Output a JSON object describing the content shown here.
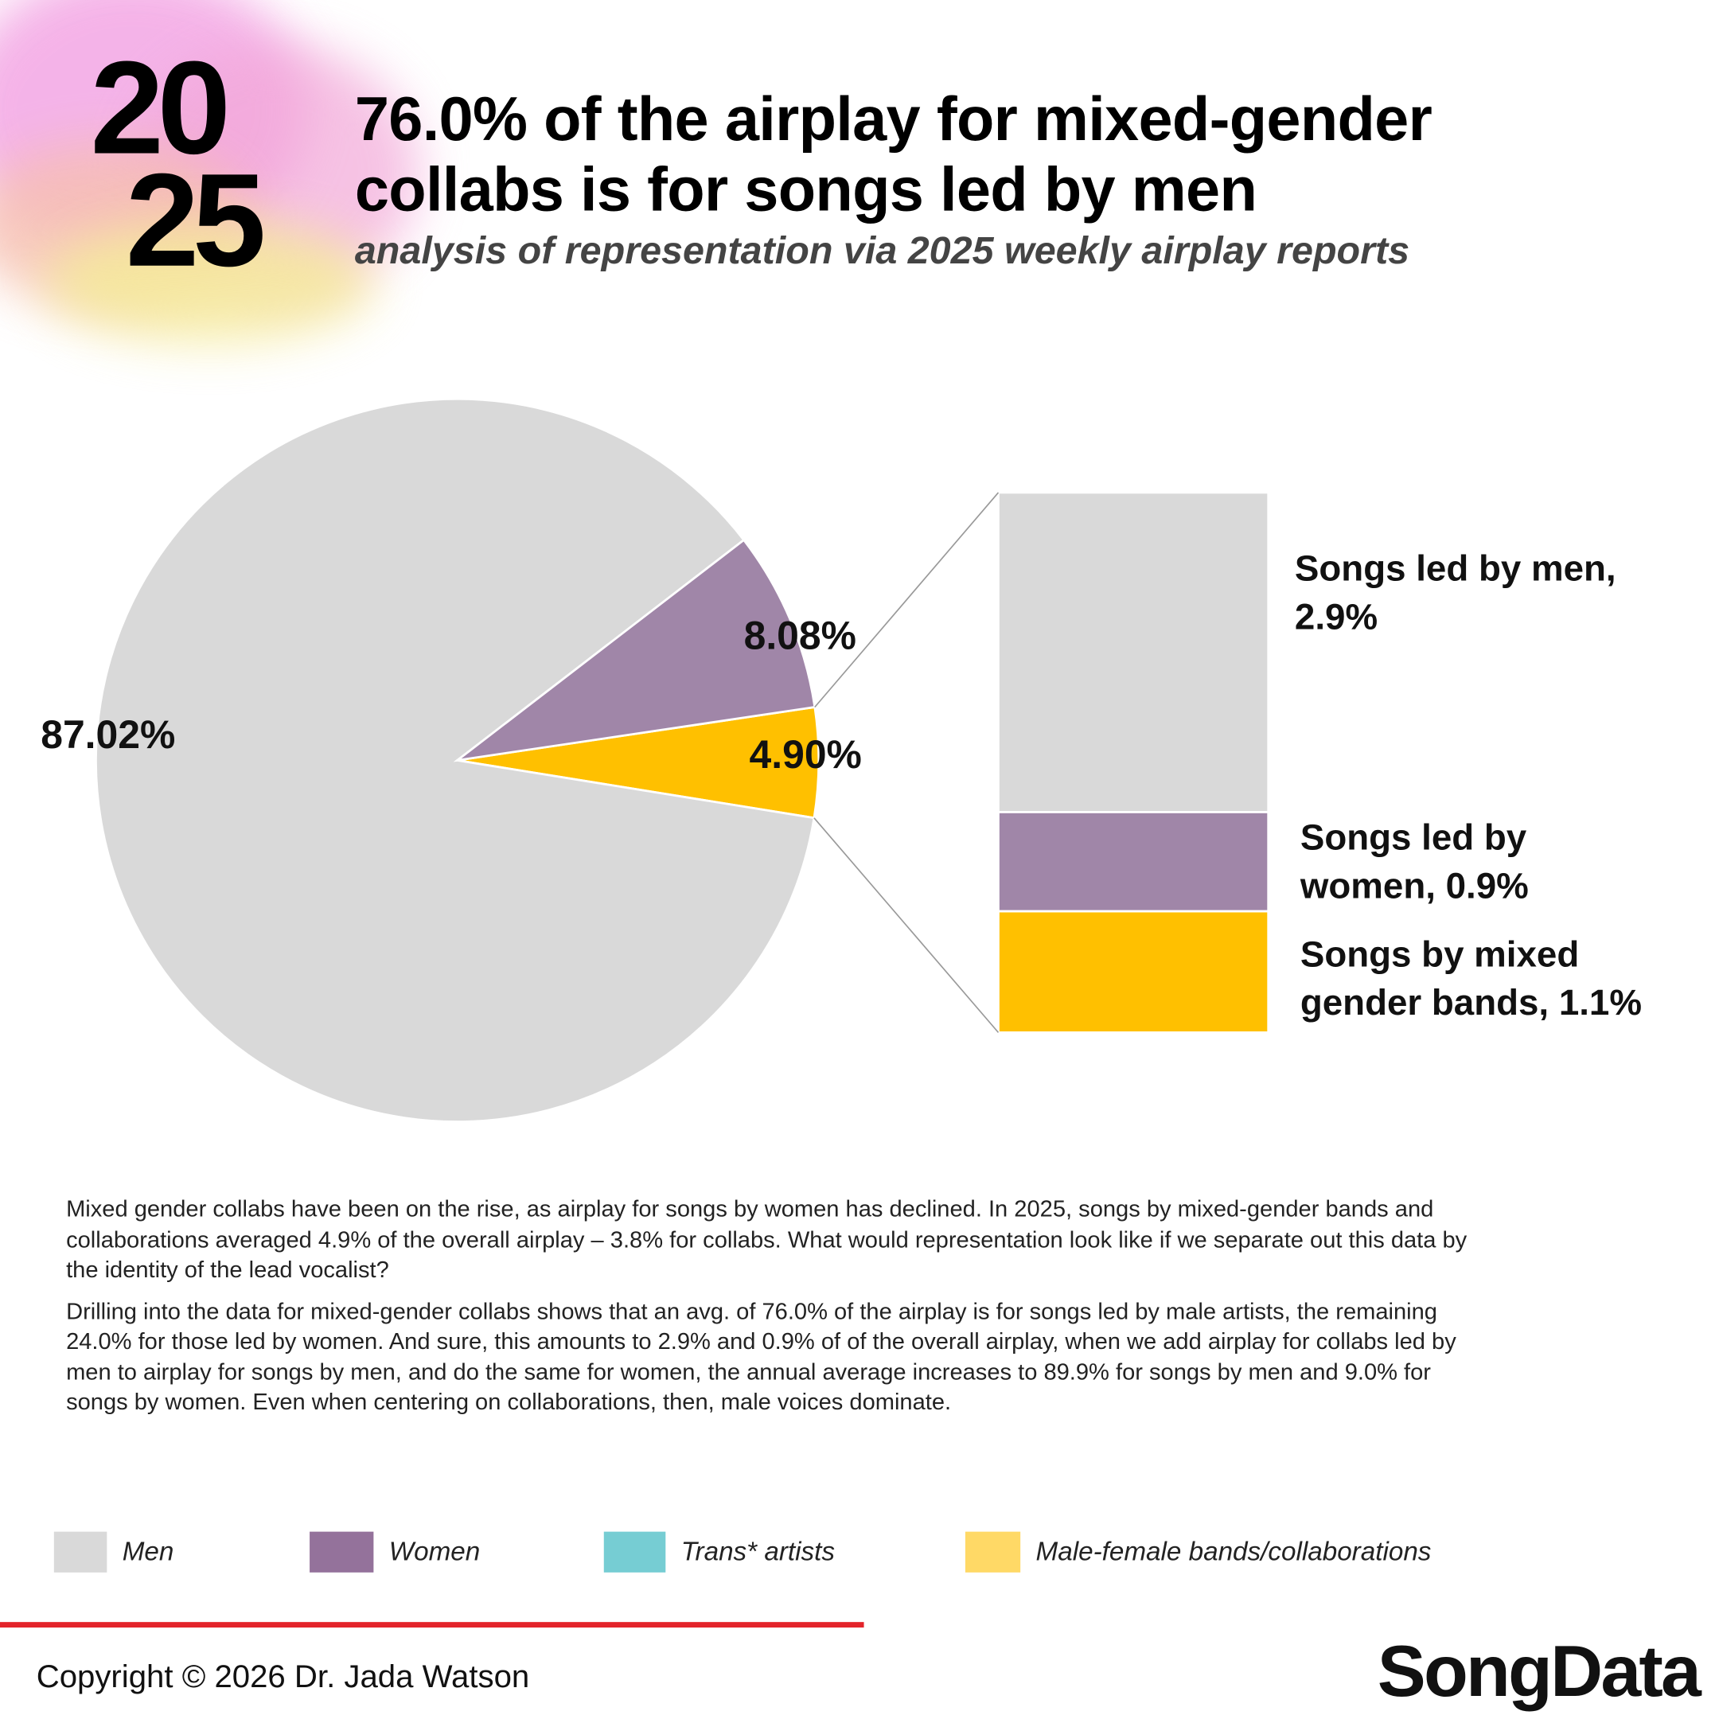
{
  "header": {
    "year_top": "20",
    "year_bottom": "25",
    "title_line1": "76.0% of the airplay for mixed-gender",
    "title_line2": "collabs is for songs led by men",
    "subtitle": "analysis of representation via 2025 weekly airplay reports"
  },
  "chart_data": [
    {
      "type": "pie",
      "slices": [
        {
          "label": "Men",
          "value": 87.02,
          "display": "87.02%",
          "color": "#d9d9d9"
        },
        {
          "label": "Women",
          "value": 8.08,
          "display": "8.08%",
          "color": "#a086a8"
        },
        {
          "label": "Male-female bands/collaborations",
          "value": 4.9,
          "display": "4.90%",
          "color": "#ffc000"
        }
      ]
    },
    {
      "type": "bar",
      "stacked": true,
      "segments": [
        {
          "label_line1": "Songs led by men,",
          "label_line2": "2.9%",
          "value": 2.9,
          "color": "#d9d9d9"
        },
        {
          "label_line1": "Songs led by",
          "label_line2": "women, 0.9%",
          "value": 0.9,
          "color": "#a086a8"
        },
        {
          "label_line1": "Songs by mixed",
          "label_line2": "gender bands, 1.1%",
          "value": 1.1,
          "color": "#ffc000"
        }
      ]
    }
  ],
  "body": {
    "p1": "Mixed gender collabs have been on the rise, as airplay for songs by women has declined. In 2025, songs by mixed-gender bands and collaborations averaged 4.9% of the overall airplay – 3.8% for collabs. What would representation look like if we separate out this data by the identity of the lead vocalist?",
    "p2": "Drilling into the data for mixed-gender collabs shows that an avg. of 76.0% of the airplay is for songs led by male artists, the remaining 24.0% for those led by women. And sure, this amounts to 2.9% and 0.9% of of the overall airplay, when we add airplay for collabs led by men to airplay for songs by men, and do the same for women, the annual average increases to 89.9% for songs by men and 9.0% for songs by women. Even when centering on collaborations, then, male voices dominate."
  },
  "legend": [
    {
      "label": "Men",
      "color": "#d9d9d9"
    },
    {
      "label": "Women",
      "color": "#94729b"
    },
    {
      "label": "Trans* artists",
      "color": "#76cdd3"
    },
    {
      "label": "Male-female bands/collaborations",
      "color": "#ffd966"
    }
  ],
  "footer": {
    "copyright": "Copyright © 2026 Dr. Jada Watson",
    "logo": "SongData"
  }
}
